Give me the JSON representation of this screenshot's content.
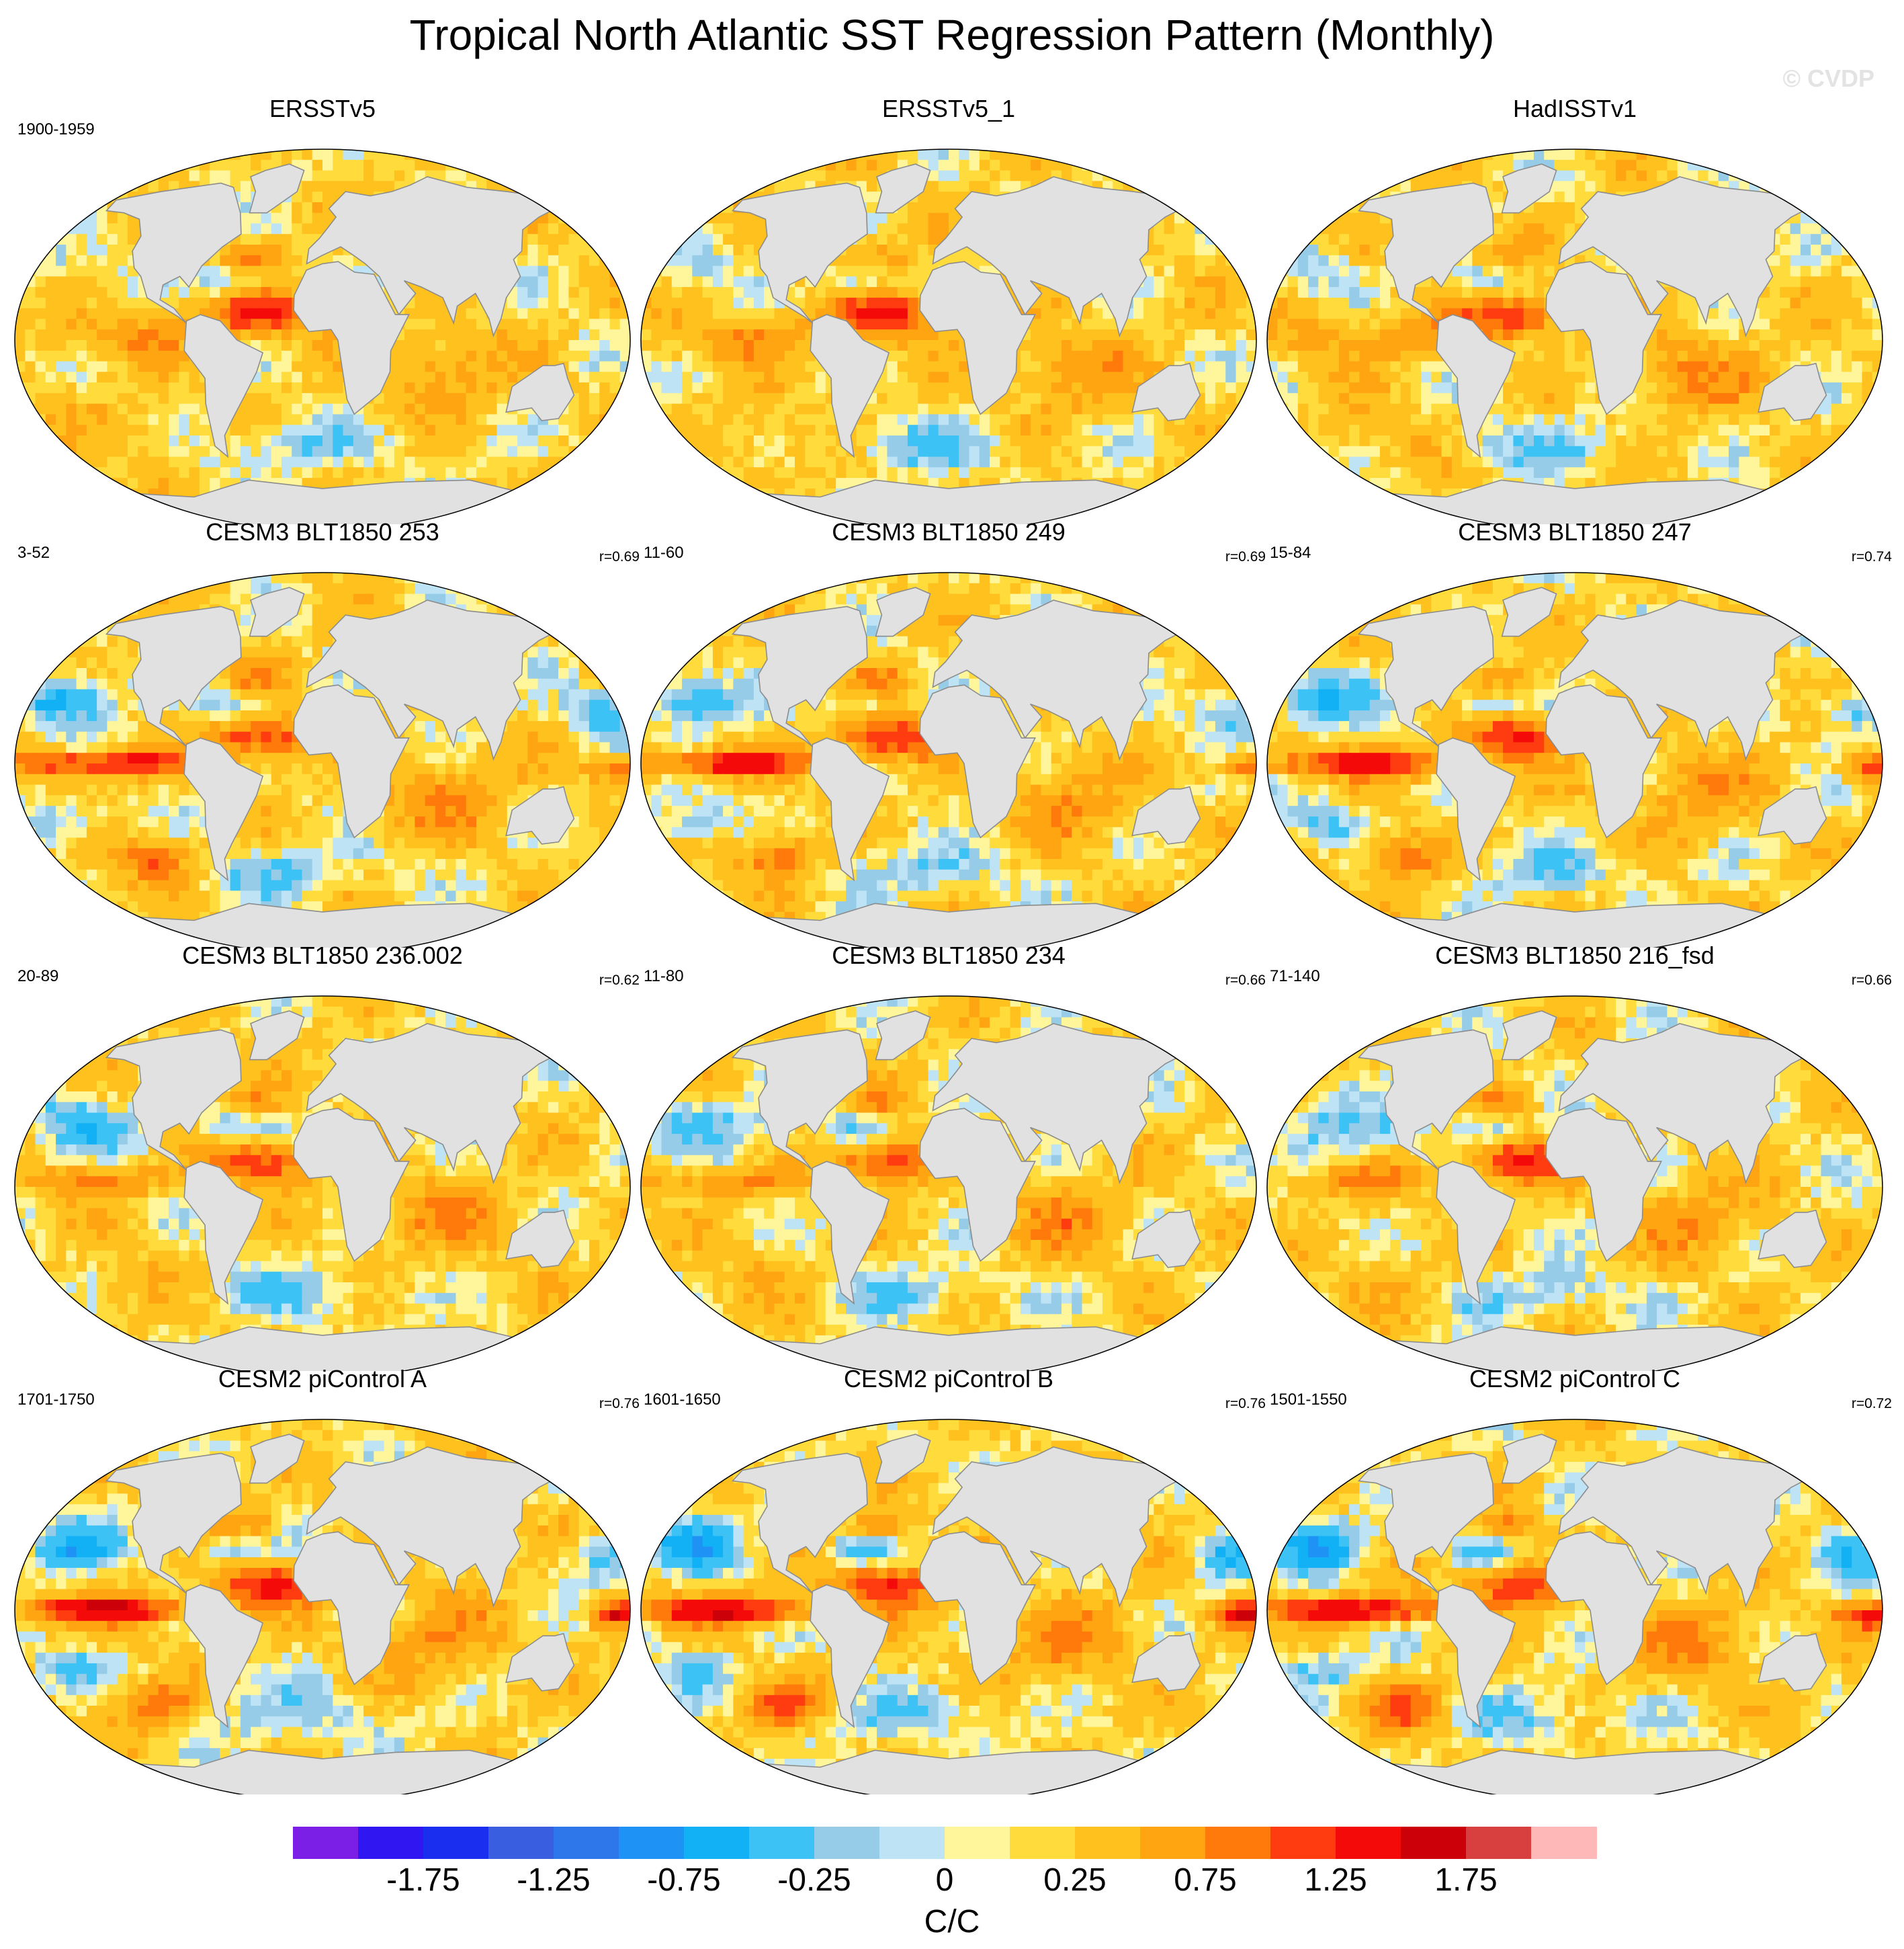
{
  "title": "Tropical North Atlantic SST Regression Pattern (Monthly)",
  "watermark": "© CVDP",
  "colors": {
    "land": "#e1e1e1",
    "coast": "#8c8c8c"
  },
  "chart_data": {
    "type": "heatmap",
    "layout": "4 rows x 3 columns of global SST regression maps (Robinson projection)",
    "panels": [
      {
        "title": "ERSSTv5",
        "period": "1900-1959",
        "r": "",
        "pattern": "obs",
        "seed": 1
      },
      {
        "title": "ERSSTv5_1",
        "period": "",
        "r": "",
        "pattern": "obs",
        "seed": 2
      },
      {
        "title": "HadISSTv1",
        "period": "",
        "r": "",
        "pattern": "obs",
        "seed": 3
      },
      {
        "title": "CESM3 BLT1850 253",
        "period": "3-52",
        "r": "r=0.69",
        "pattern": "model",
        "seed": 4
      },
      {
        "title": "CESM3 BLT1850 249",
        "period": "11-60",
        "r": "r=0.69",
        "pattern": "model",
        "seed": 5
      },
      {
        "title": "CESM3 BLT1850 247",
        "period": "15-84",
        "r": "r=0.74",
        "pattern": "model",
        "seed": 6
      },
      {
        "title": "CESM3 BLT1850 236.002",
        "period": "20-89",
        "r": "r=0.62",
        "pattern": "weak",
        "seed": 7
      },
      {
        "title": "CESM3 BLT1850 234",
        "period": "11-80",
        "r": "r=0.66",
        "pattern": "weak",
        "seed": 8
      },
      {
        "title": "CESM3 BLT1850 216_fsd",
        "period": "71-140",
        "r": "r=0.66",
        "pattern": "weak",
        "seed": 9
      },
      {
        "title": "CESM2 piControl A",
        "period": "1701-1750",
        "r": "r=0.76",
        "pattern": "strong",
        "seed": 10
      },
      {
        "title": "CESM2 piControl B",
        "period": "1601-1650",
        "r": "r=0.76",
        "pattern": "strong",
        "seed": 11
      },
      {
        "title": "CESM2 piControl C",
        "period": "1501-1550",
        "r": "r=0.72",
        "pattern": "strong",
        "seed": 12
      }
    ],
    "colorbar": {
      "unit": "C/C",
      "levels": [
        -2.0,
        -1.75,
        -1.5,
        -1.25,
        -1.0,
        -0.75,
        -0.5,
        -0.25,
        -0.1,
        0,
        0.1,
        0.25,
        0.5,
        0.75,
        1.0,
        1.25,
        1.5,
        1.75,
        2.0
      ],
      "tick_labels": [
        "-1.75",
        "-1.25",
        "-0.75",
        "-0.25",
        "0",
        "0.25",
        "0.75",
        "1.25",
        "1.75"
      ],
      "tick_values": [
        -1.75,
        -1.25,
        -0.75,
        -0.25,
        0,
        0.25,
        0.75,
        1.25,
        1.75
      ],
      "colors": [
        "#7b1fe6",
        "#3016f0",
        "#1a2ef0",
        "#3a5ee0",
        "#2e77ea",
        "#1e93f5",
        "#12b0f5",
        "#3cc2f5",
        "#96cce8",
        "#bde3f5",
        "#fff59a",
        "#ffdb3c",
        "#ffc11e",
        "#ffa512",
        "#ff7a0a",
        "#ff3c10",
        "#f50a0a",
        "#cc0008",
        "#d84040",
        "#ffb8b8"
      ]
    }
  }
}
